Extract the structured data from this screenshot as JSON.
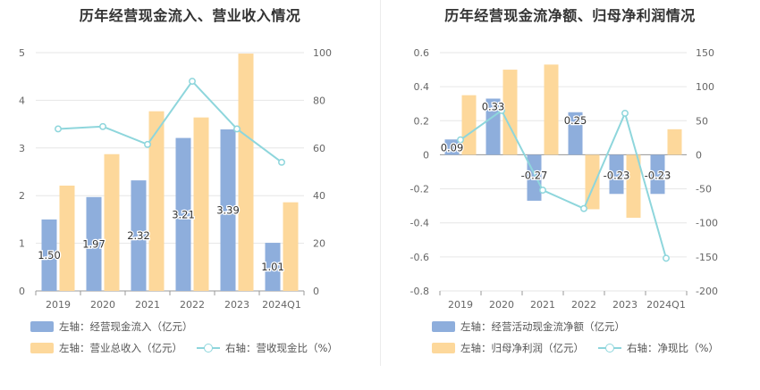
{
  "colors": {
    "bar_blue": "#8eaedc",
    "bar_orange": "#fdd89b",
    "line_cyan": "#8ed6dc"
  },
  "left": {
    "title": "历年经营现金流入、营业收入情况",
    "legend": {
      "item1": "左轴：经营现金流入（亿元）",
      "item2": "左轴：营业总收入（亿元）",
      "item3": "右轴：营收现金比（%）"
    },
    "chart_data": {
      "type": "bar",
      "categories": [
        "2019",
        "2020",
        "2021",
        "2022",
        "2023",
        "2024Q1"
      ],
      "series": [
        {
          "name": "左轴：经营现金流入（亿元）",
          "axis": "left",
          "kind": "bar",
          "values": [
            1.5,
            1.97,
            2.32,
            3.21,
            3.39,
            1.01
          ],
          "labels": [
            "1.50",
            "1.97",
            "2.32",
            "3.21",
            "3.39",
            "1.01"
          ]
        },
        {
          "name": "左轴：营业总收入（亿元）",
          "axis": "left",
          "kind": "bar",
          "values": [
            2.21,
            2.87,
            3.77,
            3.64,
            4.98,
            1.86
          ]
        },
        {
          "name": "右轴：营收现金比（%）",
          "axis": "right",
          "kind": "line",
          "values": [
            68,
            69,
            61.5,
            88,
            68,
            54
          ]
        }
      ],
      "ylim_left": [
        0,
        5
      ],
      "yticks_left": [
        "0",
        "1",
        "2",
        "3",
        "4",
        "5"
      ],
      "ylim_right": [
        0,
        100
      ],
      "yticks_right": [
        "0",
        "20",
        "40",
        "60",
        "80",
        "100"
      ]
    }
  },
  "right": {
    "title": "历年经营现金流净额、归母净利润情况",
    "legend": {
      "item1": "左轴：经营活动现金流净额（亿元）",
      "item2": "左轴：归母净利润（亿元）",
      "item3": "右轴：净现比（%）"
    },
    "chart_data": {
      "type": "bar",
      "categories": [
        "2019",
        "2020",
        "2021",
        "2022",
        "2023",
        "2024Q1"
      ],
      "series": [
        {
          "name": "左轴：经营活动现金流净额（亿元）",
          "axis": "left",
          "kind": "bar",
          "values": [
            0.09,
            0.33,
            -0.27,
            0.25,
            -0.23,
            -0.23
          ],
          "labels": [
            "0.09",
            "0.33",
            "-0.27",
            "0.25",
            "-0.23",
            "-0.23"
          ]
        },
        {
          "name": "左轴：归母净利润（亿元）",
          "axis": "left",
          "kind": "bar",
          "values": [
            0.35,
            0.5,
            0.53,
            -0.32,
            -0.37,
            0.15
          ]
        },
        {
          "name": "右轴：净现比（%）",
          "axis": "right",
          "kind": "line",
          "values": [
            22,
            65,
            -52,
            -79,
            61,
            -152
          ]
        }
      ],
      "ylim_left": [
        -0.8,
        0.6
      ],
      "yticks_left": [
        "-0.8",
        "-0.6",
        "-0.4",
        "-0.2",
        "0",
        "0.2",
        "0.4",
        "0.6"
      ],
      "ylim_right": [
        -200,
        150
      ],
      "yticks_right": [
        "-200",
        "-150",
        "-100",
        "-50",
        "0",
        "50",
        "100",
        "150"
      ]
    }
  }
}
